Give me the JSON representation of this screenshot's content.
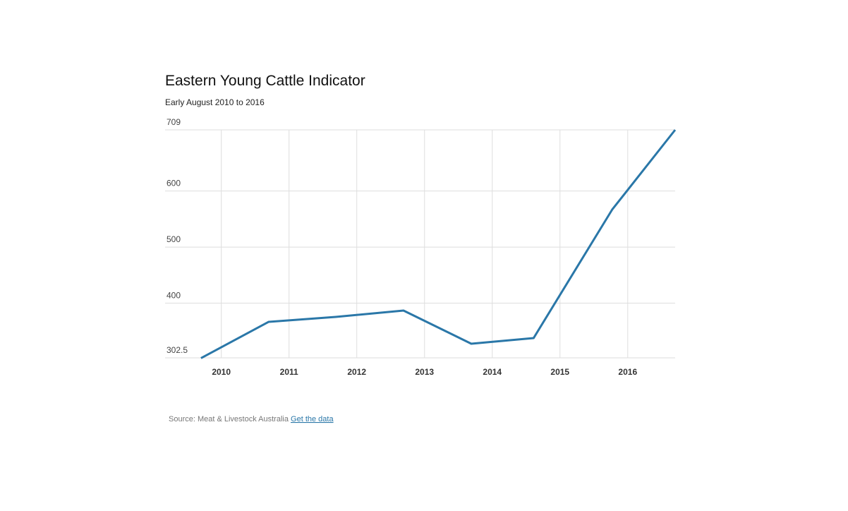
{
  "chart_data": {
    "type": "line",
    "title": "Eastern Young Cattle Indicator",
    "subtitle": "Early August 2010 to 2016",
    "x": [
      2009.7,
      2010.7,
      2011.69,
      2012.69,
      2013.69,
      2014.61,
      2015.77,
      2016.7
    ],
    "series": [
      {
        "name": "Eastern Young Cattle Indicator",
        "color": "#2a77a8",
        "values": [
          302,
          366.7,
          375.5,
          386.8,
          327.7,
          337.7,
          566.8,
          709
        ]
      }
    ],
    "xlim": [
      2009.17,
      2016.7
    ],
    "xticks": [
      2010,
      2011,
      2012,
      2013,
      2014,
      2015,
      2016
    ],
    "ylim": [
      302.5,
      709
    ],
    "yticks": [
      302.5,
      400,
      500,
      600,
      709
    ],
    "grid": true,
    "source": "Source: Meat & Livestock Australia",
    "link": "Get the data"
  }
}
